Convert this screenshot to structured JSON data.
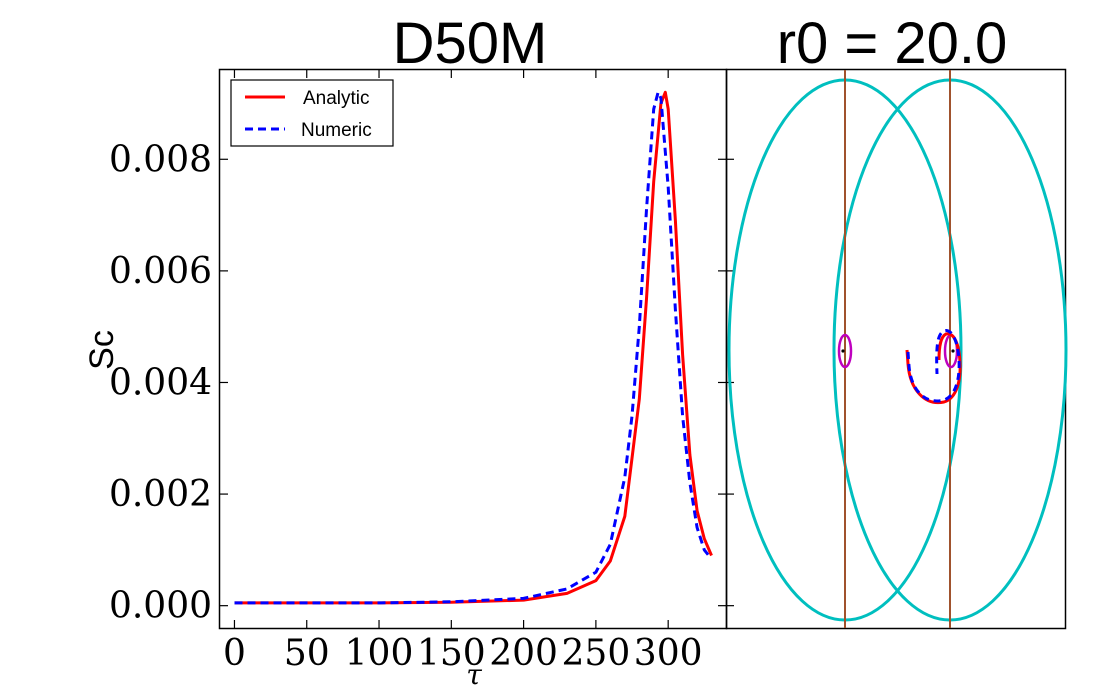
{
  "chart_data": [
    {
      "type": "line",
      "title": "D50M",
      "xlabel": "τ",
      "ylabel": "Sc",
      "xlim": [
        -10,
        340
      ],
      "ylim": [
        -0.0004,
        0.0096
      ],
      "x_ticks": [
        0,
        50,
        100,
        150,
        200,
        250,
        300
      ],
      "x_tick_labels": [
        "0",
        "50",
        "100",
        "150",
        "200",
        "250",
        "300"
      ],
      "y_ticks": [
        0.0,
        0.002,
        0.004,
        0.006,
        0.008
      ],
      "y_tick_labels": [
        "0.000",
        "0.002",
        "0.004",
        "0.006",
        "0.008"
      ],
      "legend": {
        "position": "top-left",
        "entries": [
          "Analytic",
          "Numeric"
        ]
      },
      "series": [
        {
          "name": "Analytic",
          "color": "#ff0000",
          "style": "solid",
          "x": [
            0,
            50,
            100,
            150,
            200,
            230,
            250,
            260,
            270,
            280,
            285,
            290,
            295,
            298,
            300,
            305,
            310,
            315,
            320,
            325,
            330
          ],
          "y": [
            5e-05,
            5e-05,
            5e-05,
            6e-05,
            0.0001,
            0.00022,
            0.00045,
            0.0008,
            0.0016,
            0.0037,
            0.0055,
            0.0076,
            0.009,
            0.0092,
            0.0089,
            0.0069,
            0.0045,
            0.0027,
            0.0017,
            0.0012,
            0.0009
          ]
        },
        {
          "name": "Numeric",
          "color": "#0000ff",
          "style": "dashed",
          "x": [
            0,
            50,
            100,
            150,
            200,
            230,
            250,
            260,
            270,
            275,
            280,
            285,
            290,
            293,
            295,
            300,
            305,
            310,
            315,
            320,
            325,
            328
          ],
          "y": [
            5e-05,
            5e-05,
            5e-05,
            7e-05,
            0.00013,
            0.0003,
            0.0006,
            0.0011,
            0.0023,
            0.0034,
            0.005,
            0.0071,
            0.0089,
            0.0092,
            0.0091,
            0.0075,
            0.0053,
            0.0034,
            0.0022,
            0.0014,
            0.001,
            0.0009
          ]
        }
      ]
    },
    {
      "type": "diagram",
      "title": "r0 = 20.0",
      "series": [
        {
          "name": "large-ellipse-left",
          "color": "#00bfbf"
        },
        {
          "name": "large-ellipse-right",
          "color": "#00bfbf"
        },
        {
          "name": "vertical-line-left",
          "color": "#a0522d"
        },
        {
          "name": "vertical-line-right",
          "color": "#a0522d"
        },
        {
          "name": "small-ellipse-left",
          "color": "#bf00bf"
        },
        {
          "name": "small-ellipse-right",
          "color": "#bf00bf"
        },
        {
          "name": "analytic-trajectory",
          "color": "#ff0000"
        },
        {
          "name": "numeric-trajectory",
          "color": "#0000ff"
        }
      ]
    }
  ]
}
